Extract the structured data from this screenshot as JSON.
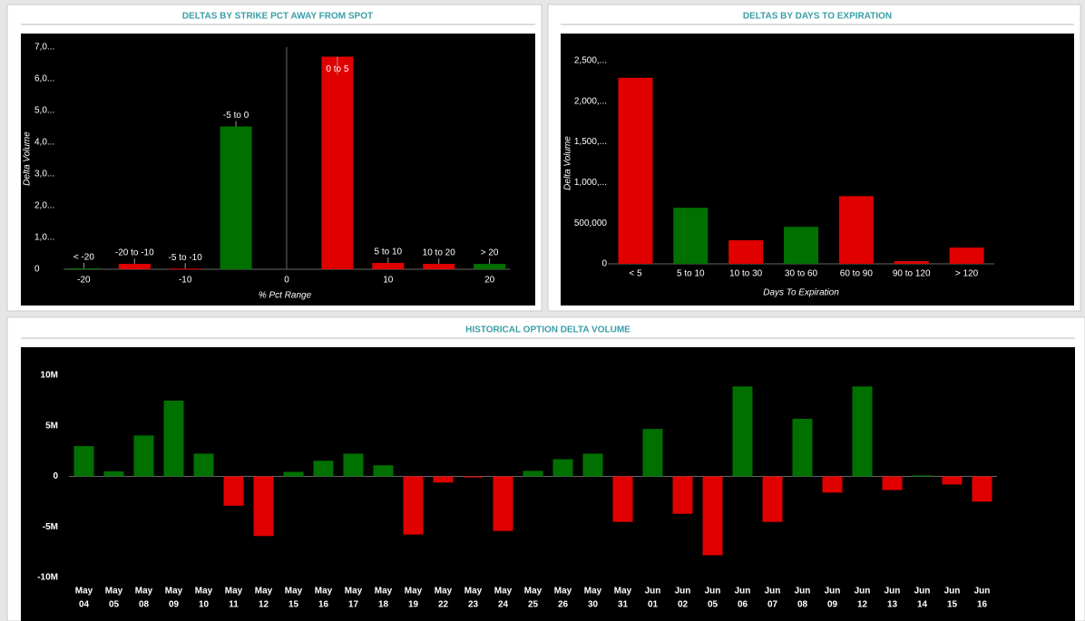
{
  "chart_data": [
    {
      "type": "bar",
      "title": "DELTAS BY STRIKE PCT AWAY FROM SPOT",
      "xlabel": "% Pct Range",
      "ylabel": "Delta Volume",
      "categories": [
        "< -20",
        "-20 to -10",
        "-5 to -10",
        "-5 to 0",
        "0 to 5",
        "5 to 10",
        "10 to 20",
        "> 20"
      ],
      "x": [
        -20,
        -15,
        -10,
        -5,
        5,
        10,
        15,
        20
      ],
      "values": [
        30000,
        170000,
        20000,
        4500000,
        6700000,
        200000,
        170000,
        170000
      ],
      "colors": [
        "#007000",
        "#e00000",
        "#e00000",
        "#007000",
        "#e00000",
        "#e00000",
        "#e00000",
        "#007000"
      ],
      "xlim": [
        -22,
        22
      ],
      "xticks": [
        -20,
        -10,
        0,
        10,
        20
      ],
      "ylim": [
        0,
        7000000
      ],
      "yticks": [
        0,
        {
          "value": 1000000,
          "label": "1,0..."
        },
        {
          "value": 2000000,
          "label": "2,0..."
        },
        {
          "value": 3000000,
          "label": "3,0..."
        },
        {
          "value": 4000000,
          "label": "4,0..."
        },
        {
          "value": 5000000,
          "label": "5,0..."
        },
        {
          "value": 6000000,
          "label": "6,0..."
        },
        {
          "value": 7000000,
          "label": "7,0..."
        }
      ]
    },
    {
      "type": "bar",
      "title": "DELTAS BY DAYS TO EXPIRATION",
      "xlabel": "Days To Expiration",
      "ylabel": "Delta Volume",
      "categories": [
        "< 5",
        "5 to 10",
        "10 to 30",
        "30 to 60",
        "60 to 90",
        "90 to 120",
        "> 120"
      ],
      "values": [
        2290000,
        690000,
        290000,
        455000,
        833000,
        33000,
        200000
      ],
      "colors": [
        "#e00000",
        "#007000",
        "#e00000",
        "#007000",
        "#e00000",
        "#e00000",
        "#e00000"
      ],
      "ylim": [
        0,
        2500000
      ],
      "yticks": [
        0,
        {
          "value": 500000,
          "label": "500,000"
        },
        {
          "value": 1000000,
          "label": "1,000,..."
        },
        {
          "value": 1500000,
          "label": "1,500,..."
        },
        {
          "value": 2000000,
          "label": "2,000,..."
        },
        {
          "value": 2500000,
          "label": "2,500,..."
        }
      ]
    },
    {
      "type": "bar",
      "title": "HISTORICAL OPTION DELTA VOLUME",
      "categories": [
        [
          "May",
          "04"
        ],
        [
          "May",
          "05"
        ],
        [
          "May",
          "08"
        ],
        [
          "May",
          "09"
        ],
        [
          "May",
          "10"
        ],
        [
          "May",
          "11"
        ],
        [
          "May",
          "12"
        ],
        [
          "May",
          "15"
        ],
        [
          "May",
          "16"
        ],
        [
          "May",
          "17"
        ],
        [
          "May",
          "18"
        ],
        [
          "May",
          "19"
        ],
        [
          "May",
          "22"
        ],
        [
          "May",
          "23"
        ],
        [
          "May",
          "24"
        ],
        [
          "May",
          "25"
        ],
        [
          "May",
          "26"
        ],
        [
          "May",
          "30"
        ],
        [
          "May",
          "31"
        ],
        [
          "Jun",
          "01"
        ],
        [
          "Jun",
          "02"
        ],
        [
          "Jun",
          "05"
        ],
        [
          "Jun",
          "06"
        ],
        [
          "Jun",
          "07"
        ],
        [
          "Jun",
          "08"
        ],
        [
          "Jun",
          "09"
        ],
        [
          "Jun",
          "12"
        ],
        [
          "Jun",
          "13"
        ],
        [
          "Jun",
          "14"
        ],
        [
          "Jun",
          "15"
        ],
        [
          "Jun",
          "16"
        ]
      ],
      "values": [
        3000000,
        500000,
        4050000,
        7500000,
        2250000,
        -2900000,
        -5900000,
        450000,
        1550000,
        2250000,
        1100000,
        -5750000,
        -600000,
        -100000,
        -5400000,
        550000,
        1700000,
        2250000,
        -4500000,
        4700000,
        -3700000,
        -7800000,
        8900000,
        -4500000,
        5700000,
        -1600000,
        8900000,
        -1350000,
        100000,
        -800000,
        -2500000
      ],
      "positive_color": "#007000",
      "negative_color": "#e00000",
      "ylim": [
        -10000000,
        10000000
      ],
      "yticks": [
        {
          "value": -10000000,
          "label": "-10M"
        },
        {
          "value": -5000000,
          "label": "-5M"
        },
        0,
        {
          "value": 5000000,
          "label": "5M"
        },
        {
          "value": 10000000,
          "label": "10M"
        }
      ]
    }
  ]
}
